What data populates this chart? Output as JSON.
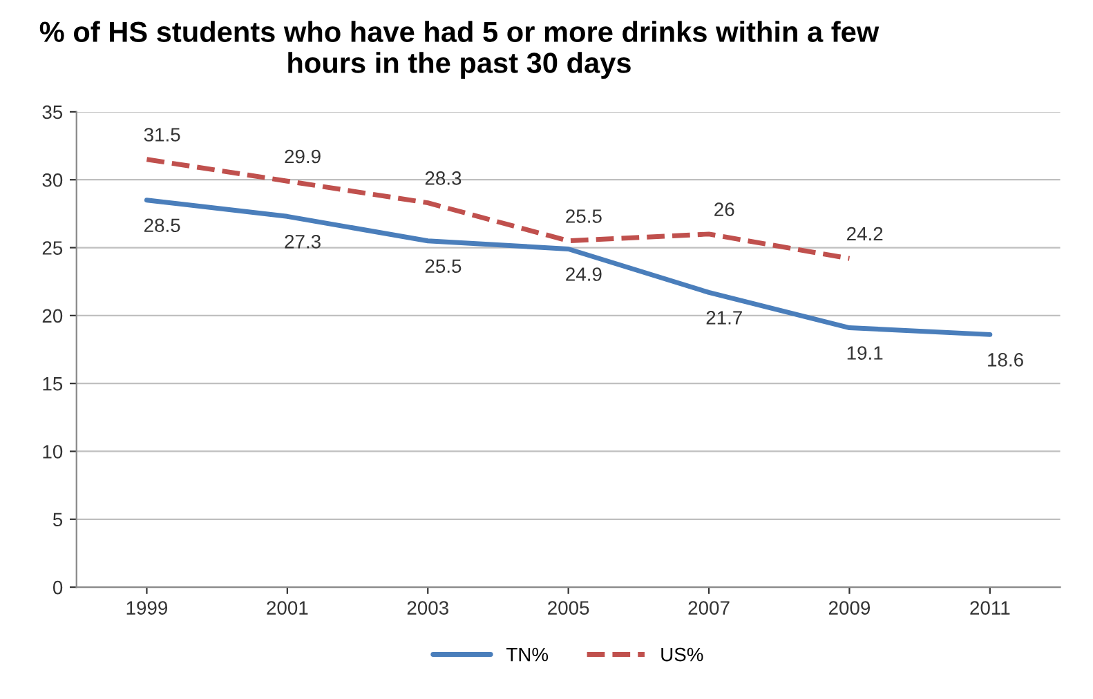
{
  "chart_data": {
    "type": "line",
    "title": "% of HS students who have had 5 or more drinks within a few hours in the past 30 days",
    "categories": [
      "1999",
      "2001",
      "2003",
      "2005",
      "2007",
      "2009",
      "2011"
    ],
    "series": [
      {
        "name": "TN%",
        "color": "#4a7ebb",
        "line_style": "solid",
        "values": [
          28.5,
          27.3,
          25.5,
          24.9,
          21.7,
          19.1,
          18.6
        ]
      },
      {
        "name": "US%",
        "color": "#c0504d",
        "line_style": "dashed",
        "values": [
          31.5,
          29.9,
          28.3,
          25.5,
          26,
          24.2,
          null
        ]
      }
    ],
    "ylim": [
      0,
      35
    ],
    "yticks": [
      0,
      5,
      10,
      15,
      20,
      25,
      30,
      35
    ],
    "grid": "y",
    "legend": "bottom",
    "data_labels": true,
    "marker": "none"
  }
}
